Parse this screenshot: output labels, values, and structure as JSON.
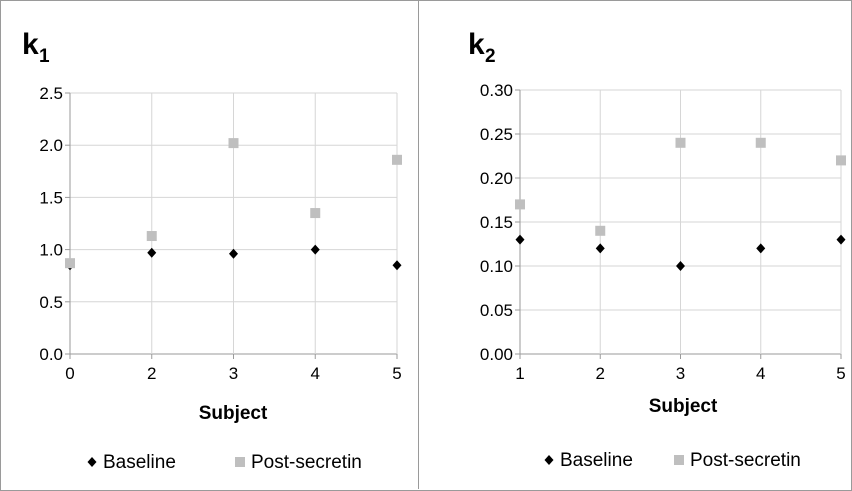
{
  "chart_data": [
    {
      "type": "scatter",
      "title_main": "k",
      "title_sub": "1",
      "xlabel": "Subject",
      "ylabel": "",
      "x_ticks": [
        "0",
        "2",
        "3",
        "4",
        "5"
      ],
      "y_ticks": [
        "0.0",
        "0.5",
        "1.0",
        "1.5",
        "2.0",
        "2.5"
      ],
      "ylim": [
        0,
        2.5
      ],
      "grid": true,
      "legend_position": "bottom",
      "series": [
        {
          "name": "Baseline",
          "marker": "diamond",
          "color": "#000000",
          "values": [
            0.85,
            0.97,
            0.96,
            1.0,
            0.85
          ]
        },
        {
          "name": "Post-secretin",
          "marker": "square",
          "color": "#bfbfbf",
          "values": [
            0.87,
            1.13,
            2.02,
            1.35,
            1.86
          ]
        }
      ]
    },
    {
      "type": "scatter",
      "title_main": "k",
      "title_sub": "2",
      "xlabel": "Subject",
      "ylabel": "",
      "x_ticks": [
        "1",
        "2",
        "3",
        "4",
        "5"
      ],
      "y_ticks": [
        "0.00",
        "0.05",
        "0.10",
        "0.15",
        "0.20",
        "0.25",
        "0.30"
      ],
      "ylim": [
        0,
        0.3
      ],
      "grid": true,
      "legend_position": "bottom",
      "series": [
        {
          "name": "Baseline",
          "marker": "diamond",
          "color": "#000000",
          "values": [
            0.13,
            0.12,
            0.1,
            0.12,
            0.13
          ]
        },
        {
          "name": "Post-secretin",
          "marker": "square",
          "color": "#bfbfbf",
          "values": [
            0.17,
            0.14,
            0.24,
            0.24,
            0.22
          ]
        }
      ]
    }
  ]
}
